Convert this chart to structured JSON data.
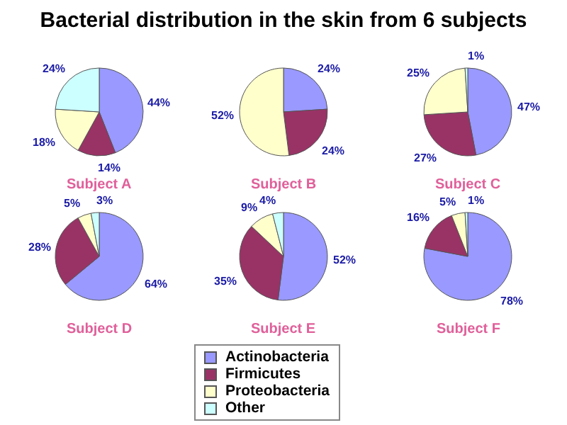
{
  "chart_data": [
    {
      "type": "pie",
      "title": "Bacterial distribution in the skin from 6 subjects",
      "xlabel": "Subject A",
      "legend": "bottom",
      "categories": [
        "Actinobacteria",
        "Firmicutes",
        "Proteobacteria",
        "Other"
      ],
      "values": [
        44,
        14,
        18,
        24
      ],
      "value_labels": [
        "44%",
        "14%",
        "18%",
        "24%"
      ],
      "colors": [
        "#9999ff",
        "#993366",
        "#ffffcc",
        "#ccffff"
      ]
    },
    {
      "type": "pie",
      "xlabel": "Subject B",
      "categories": [
        null,
        null,
        null
      ],
      "values": [
        24,
        24,
        52
      ],
      "value_labels": [
        "24%",
        "24%",
        "52%"
      ],
      "colors": [
        "#9999ff",
        "#993366",
        "#ffffcc"
      ]
    },
    {
      "type": "pie",
      "xlabel": "Subject C",
      "categories": [
        null,
        null,
        null,
        null
      ],
      "values": [
        47,
        27,
        25,
        1
      ],
      "value_labels": [
        "47%",
        "27%",
        "25%",
        "1%"
      ],
      "colors": [
        "#9999ff",
        "#993366",
        "#ffffcc",
        "#ccffff"
      ]
    },
    {
      "type": "pie",
      "xlabel": "Subject D",
      "categories": [
        null,
        null,
        null,
        null
      ],
      "values": [
        64,
        28,
        5,
        3
      ],
      "value_labels": [
        "64%",
        "28%",
        "5%",
        "3%"
      ],
      "colors": [
        "#9999ff",
        "#993366",
        "#ffffcc",
        "#ccffff"
      ]
    },
    {
      "type": "pie",
      "xlabel": "Subject E",
      "categories": [
        null,
        null,
        null,
        null
      ],
      "values": [
        52,
        35,
        9,
        4
      ],
      "value_labels": [
        "52%",
        "35%",
        "9%",
        "4%"
      ],
      "colors": [
        "#9999ff",
        "#993366",
        "#ffffcc",
        "#ccffff"
      ]
    },
    {
      "type": "pie",
      "xlabel": "Subject F",
      "categories": [
        null,
        null,
        null,
        null
      ],
      "values": [
        78,
        16,
        5,
        1
      ],
      "value_labels": [
        "78%",
        "16%",
        "5%",
        "1%"
      ],
      "colors": [
        "#9999ff",
        "#993366",
        "#ffffcc",
        "#ccffff"
      ]
    }
  ]
}
